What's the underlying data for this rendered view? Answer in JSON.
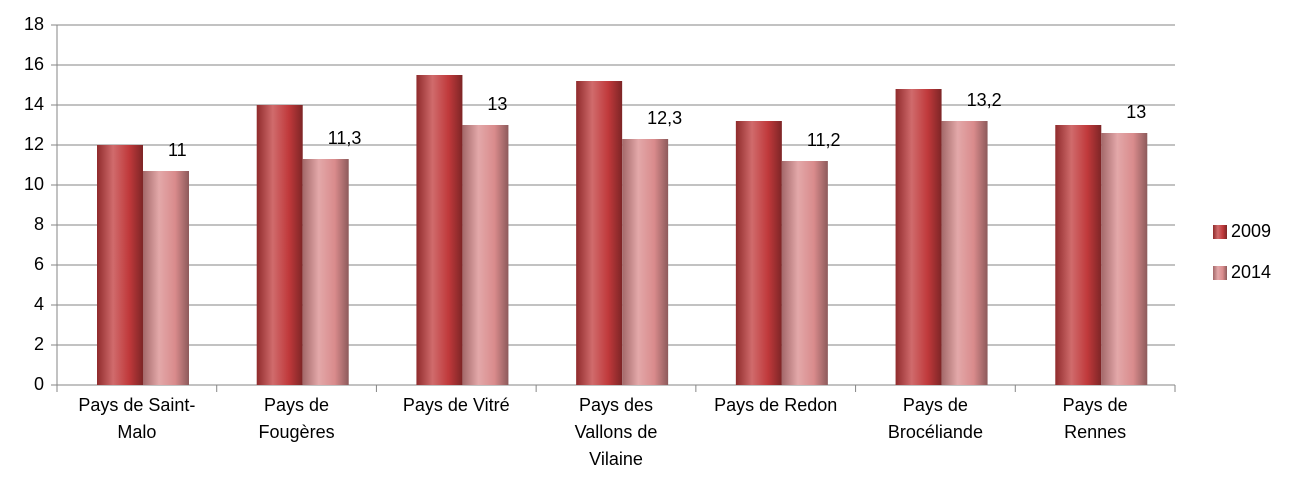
{
  "chart_data": {
    "type": "bar",
    "categories": [
      "Pays de Saint-Malo",
      "Pays de Fougères",
      "Pays de Vitré",
      "Pays des Vallons de Vilaine",
      "Pays de Redon",
      "Pays de Brocéliande",
      "Pays de Rennes"
    ],
    "series": [
      {
        "name": "2009",
        "color": "#c0393b",
        "values": [
          12,
          14,
          15.5,
          15.2,
          13.2,
          14.8,
          13
        ]
      },
      {
        "name": "2014",
        "color": "#d98b8c",
        "values": [
          10.7,
          11.3,
          13,
          12.3,
          11.2,
          13.2,
          12.6
        ],
        "value_labels": [
          "11",
          "11,3",
          "13",
          "12,3",
          "11,2",
          "13,2",
          "13"
        ]
      }
    ],
    "ylim": [
      0,
      18
    ],
    "yticks": [
      0,
      2,
      4,
      6,
      8,
      10,
      12,
      14,
      16,
      18
    ],
    "grid": true,
    "legend": "right"
  }
}
